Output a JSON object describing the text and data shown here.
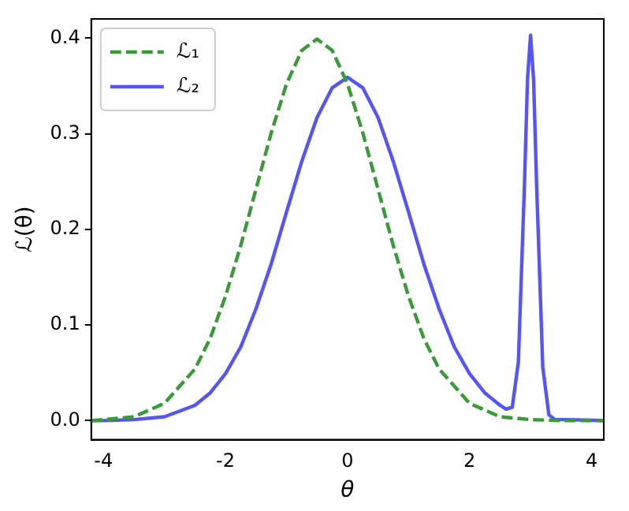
{
  "chart_data": {
    "type": "line",
    "xlabel": "θ",
    "ylabel": "ℒ(θ)",
    "xlim": [
      -4.2,
      4.2
    ],
    "xticks": [
      -4,
      -2,
      0,
      2,
      4
    ],
    "ylim": [
      -0.02,
      0.42
    ],
    "yticks": [
      {
        "value": 0,
        "label": "0.0"
      },
      {
        "value": 0.1,
        "label": "0.1"
      },
      {
        "value": 0.2,
        "label": "0.2"
      },
      {
        "value": 0.3,
        "label": "0.3"
      },
      {
        "value": 0.4,
        "label": "0.4"
      }
    ],
    "grid": false,
    "legend": "top left",
    "marker": "none",
    "series": [
      {
        "name": "ℒ₁",
        "color": "#3a9a3a",
        "line_style": "dashed",
        "x": [
          -4.2,
          -4,
          -3.5,
          -3,
          -2.5,
          -2.25,
          -2,
          -1.75,
          -1.5,
          -1.25,
          -1,
          -0.75,
          -0.5,
          -0.25,
          0,
          0.25,
          0.5,
          0.75,
          1,
          1.25,
          1.5,
          2,
          2.5,
          3,
          3.5,
          4.2
        ],
        "values": [
          0,
          0.001,
          0.004,
          0.018,
          0.054,
          0.086,
          0.13,
          0.183,
          0.242,
          0.301,
          0.352,
          0.387,
          0.399,
          0.387,
          0.352,
          0.301,
          0.242,
          0.183,
          0.13,
          0.086,
          0.054,
          0.018,
          0.004,
          0.001,
          0,
          0
        ]
      },
      {
        "name": "ℒ₂",
        "color": "#5555f5",
        "line_style": "solid",
        "x": [
          -4.2,
          -4,
          -3.5,
          -3,
          -2.5,
          -2.25,
          -2,
          -1.75,
          -1.5,
          -1.25,
          -1,
          -0.75,
          -0.5,
          -0.25,
          0,
          0.25,
          0.5,
          0.75,
          1,
          1.25,
          1.5,
          1.75,
          2,
          2.25,
          2.5,
          2.6,
          2.7,
          2.8,
          2.9,
          2.95,
          3,
          3.05,
          3.1,
          3.2,
          3.3,
          3.4,
          3.6,
          4.2
        ],
        "values": [
          0,
          0,
          0.001,
          0.004,
          0.016,
          0.029,
          0.049,
          0.077,
          0.117,
          0.164,
          0.218,
          0.271,
          0.317,
          0.348,
          0.359,
          0.348,
          0.317,
          0.271,
          0.218,
          0.164,
          0.117,
          0.077,
          0.049,
          0.029,
          0.016,
          0.012,
          0.014,
          0.061,
          0.247,
          0.357,
          0.403,
          0.356,
          0.245,
          0.056,
          0.006,
          0.001,
          0.001,
          0
        ]
      }
    ]
  }
}
